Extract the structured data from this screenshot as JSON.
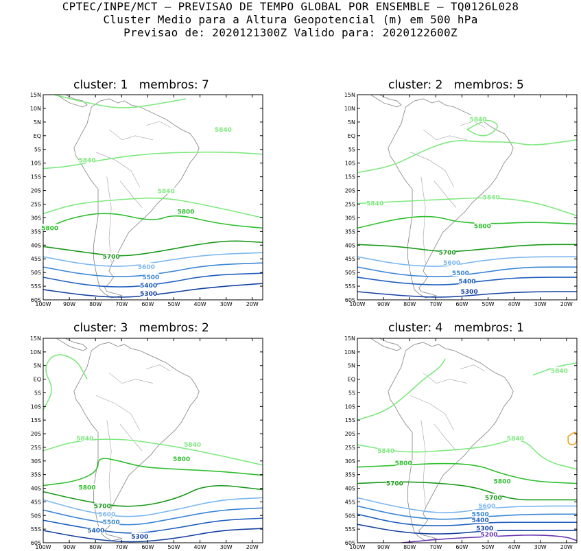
{
  "header": {
    "line1": "CPTEC/INPE/MCT – PREVISAO DE TEMPO GLOBAL POR ENSEMBLE – TQ0126L028",
    "line2": "Cluster Medio para a Altura Geopotencial (m) em 500 hPa",
    "line3": "Previsao de: 2020121300Z    Valido para: 2020122600Z"
  },
  "axes": {
    "lat_labels": [
      "15N",
      "10N",
      "5N",
      "EQ",
      "5S",
      "10S",
      "15S",
      "20S",
      "25S",
      "30S",
      "35S",
      "40S",
      "45S",
      "50S",
      "55S",
      "60S"
    ],
    "lon_labels": [
      "100W",
      "90W",
      "80W",
      "70W",
      "60W",
      "50W",
      "40W",
      "30W",
      "20W"
    ]
  },
  "contour_colors": {
    "5840": "#7de97d",
    "5800": "#2fbf2f",
    "5700": "#1a9a1a",
    "5600": "#7bb6f0",
    "5500": "#3a86d6",
    "5400": "#1f5fbf",
    "5300": "#1440a0",
    "5200": "#6a35b0",
    "5880": "#f0a020",
    "coast": "#8c8c8c"
  },
  "panels": [
    {
      "title": "cluster: 1   membros: 7",
      "labels": [
        {
          "text": "5840",
          "lvl": "5840"
        },
        {
          "text": "5840",
          "lvl": "5840"
        },
        {
          "text": "5840",
          "lvl": "5840"
        },
        {
          "text": "5800",
          "lvl": "5800"
        },
        {
          "text": "5800",
          "lvl": "5800"
        },
        {
          "text": "5700",
          "lvl": "5700"
        },
        {
          "text": "5600",
          "lvl": "5600"
        },
        {
          "text": "5500",
          "lvl": "5500"
        },
        {
          "text": "5400",
          "lvl": "5400"
        },
        {
          "text": "5300",
          "lvl": "5300"
        }
      ]
    },
    {
      "title": "cluster: 2   membros: 5",
      "labels": [
        {
          "text": "5840",
          "lvl": "5840"
        },
        {
          "text": "5840",
          "lvl": "5840"
        },
        {
          "text": "5840",
          "lvl": "5840"
        },
        {
          "text": "5800",
          "lvl": "5800"
        },
        {
          "text": "5700",
          "lvl": "5700"
        },
        {
          "text": "5600",
          "lvl": "5600"
        },
        {
          "text": "5500",
          "lvl": "5500"
        },
        {
          "text": "5400",
          "lvl": "5400"
        },
        {
          "text": "5300",
          "lvl": "5300"
        }
      ]
    },
    {
      "title": "cluster: 3   membros: 2",
      "labels": [
        {
          "text": "5840",
          "lvl": "5840"
        },
        {
          "text": "5840",
          "lvl": "5840"
        },
        {
          "text": "5800",
          "lvl": "5800"
        },
        {
          "text": "5800",
          "lvl": "5800"
        },
        {
          "text": "5700",
          "lvl": "5700"
        },
        {
          "text": "5600",
          "lvl": "5600"
        },
        {
          "text": "5500",
          "lvl": "5500"
        },
        {
          "text": "5400",
          "lvl": "5400"
        },
        {
          "text": "5300",
          "lvl": "5300"
        }
      ]
    },
    {
      "title": "cluster: 4   membros: 1",
      "labels": [
        {
          "text": "5840",
          "lvl": "5840"
        },
        {
          "text": "5840",
          "lvl": "5840"
        },
        {
          "text": "5840",
          "lvl": "5840"
        },
        {
          "text": "5800",
          "lvl": "5800"
        },
        {
          "text": "5800",
          "lvl": "5800"
        },
        {
          "text": "5700",
          "lvl": "5700"
        },
        {
          "text": "5700",
          "lvl": "5700"
        },
        {
          "text": "5600",
          "lvl": "5600"
        },
        {
          "text": "5500",
          "lvl": "5500"
        },
        {
          "text": "5400",
          "lvl": "5400"
        },
        {
          "text": "5300",
          "lvl": "5300"
        },
        {
          "text": "5200",
          "lvl": "5200"
        }
      ]
    }
  ]
}
